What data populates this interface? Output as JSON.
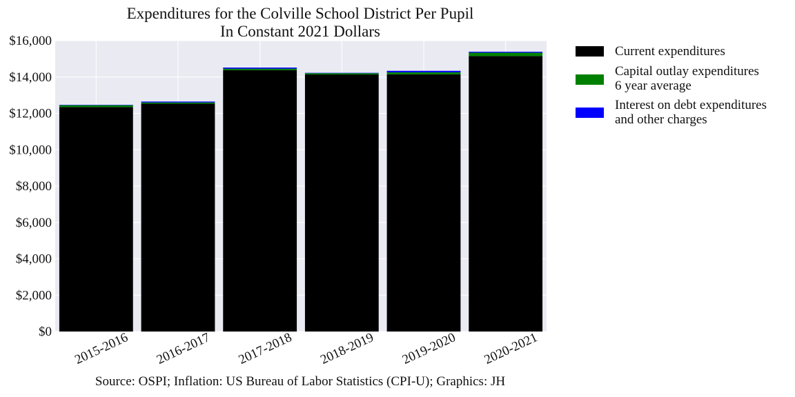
{
  "chart_data": {
    "type": "bar",
    "stacked": true,
    "title": "Expenditures for the Colville School District Per Pupil",
    "subtitle": "In Constant 2021 Dollars",
    "categories": [
      "2015-2016",
      "2016-2017",
      "2017-2018",
      "2018-2019",
      "2019-2020",
      "2020-2021"
    ],
    "series": [
      {
        "name": "Current expenditures",
        "name_line2": "",
        "color": "#000000",
        "values": [
          12350,
          12530,
          14380,
          14140,
          14150,
          15150
        ]
      },
      {
        "name": "Capital outlay expenditures",
        "name_line2": "6 year average",
        "color": "#008000",
        "values": [
          100,
          70,
          80,
          70,
          110,
          190
        ]
      },
      {
        "name": "Interest on debt expenditures",
        "name_line2": "and other charges",
        "color": "#0000ff",
        "values": [
          20,
          50,
          60,
          20,
          80,
          50
        ]
      }
    ],
    "ylim": [
      0,
      16000
    ],
    "yticks": [
      0,
      2000,
      4000,
      6000,
      8000,
      10000,
      12000,
      14000,
      16000
    ],
    "ytick_labels": [
      "$0",
      "$2,000",
      "$4,000",
      "$6,000",
      "$8,000",
      "$10,000",
      "$12,000",
      "$14,000",
      "$16,000"
    ],
    "xlabel": "",
    "ylabel": "",
    "grid": true,
    "legend_position": "outside-right",
    "background": "#eaeaf2"
  },
  "footer": {
    "source": "Source: OSPI; Inflation: US Bureau of Labor Statistics (CPI-U); Graphics: JH"
  }
}
